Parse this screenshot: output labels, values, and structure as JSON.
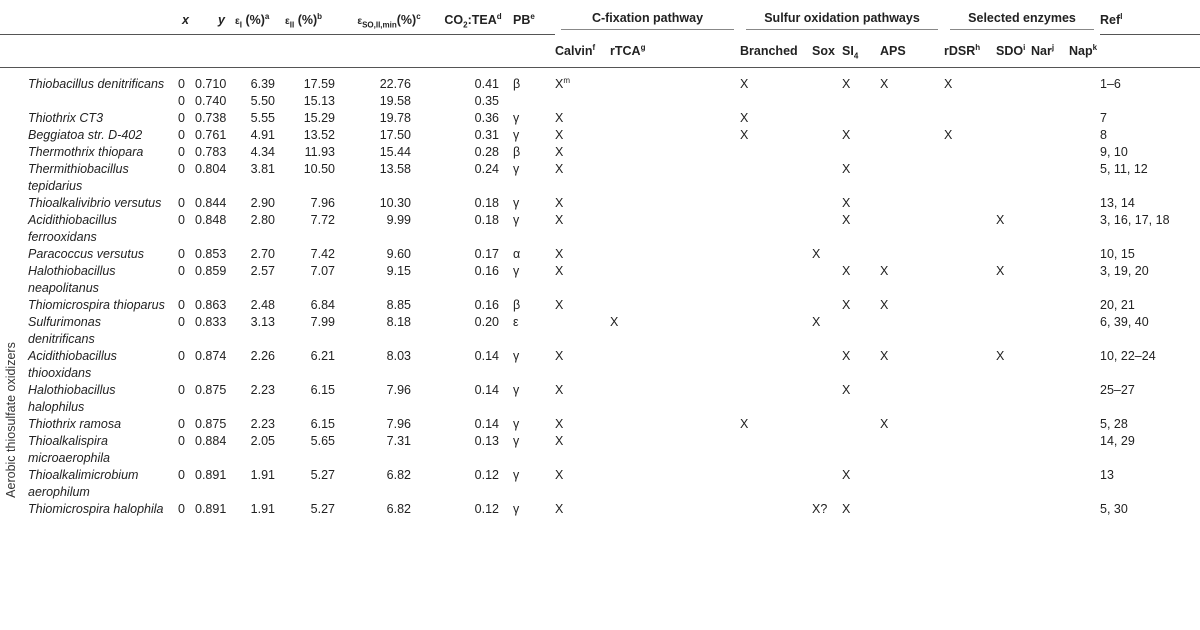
{
  "side_label": "Aerobic thiosulfate oxidizers",
  "headers": {
    "x": "x",
    "y": "y",
    "eps1": "ε",
    "eps1_sub": "I",
    "eps1_unit": "(%)",
    "eps1_sup": "a",
    "eps2": "ε",
    "eps2_sub": "II",
    "eps2_unit": "(%)",
    "eps2_sup": "b",
    "eps3": "ε",
    "eps3_sub": "SO,II,min",
    "eps3_unit": "(%)",
    "eps3_sup": "c",
    "co2": "CO",
    "co2_sub": "2",
    "co2_rest": ":TEA",
    "co2_sup": "d",
    "pb": "PB",
    "pb_sup": "e",
    "group_cfix": "C-fixation pathway",
    "group_sulfur": "Sulfur oxidation pathways",
    "group_enzymes": "Selected enzymes",
    "ref": "Ref",
    "ref_sup": "l",
    "calvin": "Calvin",
    "calvin_sup": "f",
    "rtca": "rTCA",
    "rtca_sup": "g",
    "branched": "Branched",
    "sox": "Sox",
    "si4": "SI",
    "si4_sub": "4",
    "aps": "APS",
    "rdsr": "rDSR",
    "rdsr_sup": "h",
    "sdo": "SDO",
    "sdo_sup": "i",
    "nar": "Nar",
    "nar_sup": "j",
    "nap": "Nap",
    "nap_sup": "k"
  },
  "rows": [
    {
      "org": "Thiobacillus denitrificans",
      "x": "0",
      "y": "0.710",
      "e1": "6.39",
      "e2": "17.59",
      "e3": "22.76",
      "co2": "0.41",
      "pb": "β",
      "calvin": "X",
      "calvin_sup": "m",
      "rtca": "",
      "branched": "X",
      "sox": "",
      "si4": "X",
      "aps": "X",
      "rdsr": "X",
      "sdo": "",
      "nar": "",
      "nap": "",
      "ref": "1–6"
    },
    {
      "org": "",
      "x": "0",
      "y": "0.740",
      "e1": "5.50",
      "e2": "15.13",
      "e3": "19.58",
      "co2": "0.35",
      "pb": "",
      "calvin": "",
      "calvin_sup": "",
      "rtca": "",
      "branched": "",
      "sox": "",
      "si4": "",
      "aps": "",
      "rdsr": "",
      "sdo": "",
      "nar": "",
      "nap": "",
      "ref": ""
    },
    {
      "org": "Thiothrix CT3",
      "x": "0",
      "y": "0.738",
      "e1": "5.55",
      "e2": "15.29",
      "e3": "19.78",
      "co2": "0.36",
      "pb": "γ",
      "calvin": "X",
      "calvin_sup": "",
      "rtca": "",
      "branched": "X",
      "sox": "",
      "si4": "",
      "aps": "",
      "rdsr": "",
      "sdo": "",
      "nar": "",
      "nap": "",
      "ref": "7"
    },
    {
      "org": "Beggiatoa str. D-402",
      "x": "0",
      "y": "0.761",
      "e1": "4.91",
      "e2": "13.52",
      "e3": "17.50",
      "co2": "0.31",
      "pb": "γ",
      "calvin": "X",
      "calvin_sup": "",
      "rtca": "",
      "branched": "X",
      "sox": "",
      "si4": "X",
      "aps": "",
      "rdsr": "X",
      "sdo": "",
      "nar": "",
      "nap": "",
      "ref": "8"
    },
    {
      "org": "Thermothrix thiopara",
      "x": "0",
      "y": "0.783",
      "e1": "4.34",
      "e2": "11.93",
      "e3": "15.44",
      "co2": "0.28",
      "pb": "β",
      "calvin": "X",
      "calvin_sup": "",
      "rtca": "",
      "branched": "",
      "sox": "",
      "si4": "",
      "aps": "",
      "rdsr": "",
      "sdo": "",
      "nar": "",
      "nap": "",
      "ref": "9, 10"
    },
    {
      "org": "Thermithiobacillus tepidarius",
      "x": "0",
      "y": "0.804",
      "e1": "3.81",
      "e2": "10.50",
      "e3": "13.58",
      "co2": "0.24",
      "pb": "γ",
      "calvin": "X",
      "calvin_sup": "",
      "rtca": "",
      "branched": "",
      "sox": "",
      "si4": "X",
      "aps": "",
      "rdsr": "",
      "sdo": "",
      "nar": "",
      "nap": "",
      "ref": "5, 11, 12"
    },
    {
      "org": "Thioalkalivibrio versutus",
      "x": "0",
      "y": "0.844",
      "e1": "2.90",
      "e2": "7.96",
      "e3": "10.30",
      "co2": "0.18",
      "pb": "γ",
      "calvin": "X",
      "calvin_sup": "",
      "rtca": "",
      "branched": "",
      "sox": "",
      "si4": "X",
      "aps": "",
      "rdsr": "",
      "sdo": "",
      "nar": "",
      "nap": "",
      "ref": "13, 14"
    },
    {
      "org": "Acidithiobacillus ferrooxidans",
      "x": "0",
      "y": "0.848",
      "e1": "2.80",
      "e2": "7.72",
      "e3": "9.99",
      "co2": "0.18",
      "pb": "γ",
      "calvin": "X",
      "calvin_sup": "",
      "rtca": "",
      "branched": "",
      "sox": "",
      "si4": "X",
      "aps": "",
      "rdsr": "",
      "sdo": "X",
      "nar": "",
      "nap": "",
      "ref": "3, 16, 17, 18"
    },
    {
      "org": "Paracoccus versutus",
      "x": "0",
      "y": "0.853",
      "e1": "2.70",
      "e2": "7.42",
      "e3": "9.60",
      "co2": "0.17",
      "pb": "α",
      "calvin": "X",
      "calvin_sup": "",
      "rtca": "",
      "branched": "",
      "sox": "X",
      "si4": "",
      "aps": "",
      "rdsr": "",
      "sdo": "",
      "nar": "",
      "nap": "",
      "ref": "10, 15"
    },
    {
      "org": "Halothiobacillus neapolitanus",
      "x": "0",
      "y": "0.859",
      "e1": "2.57",
      "e2": "7.07",
      "e3": "9.15",
      "co2": "0.16",
      "pb": "γ",
      "calvin": "X",
      "calvin_sup": "",
      "rtca": "",
      "branched": "",
      "sox": "",
      "si4": "X",
      "aps": "X",
      "rdsr": "",
      "sdo": "X",
      "nar": "",
      "nap": "",
      "ref": "3, 19, 20"
    },
    {
      "org": "Thiomicrospira thioparus",
      "x": "0",
      "y": "0.863",
      "e1": "2.48",
      "e2": "6.84",
      "e3": "8.85",
      "co2": "0.16",
      "pb": "β",
      "calvin": "X",
      "calvin_sup": "",
      "rtca": "",
      "branched": "",
      "sox": "",
      "si4": "X",
      "aps": "X",
      "rdsr": "",
      "sdo": "",
      "nar": "",
      "nap": "",
      "ref": "20, 21"
    },
    {
      "org": "Sulfurimonas denitrificans",
      "x": "0",
      "y": "0.833",
      "e1": "3.13",
      "e2": "7.99",
      "e3": "8.18",
      "co2": "0.20",
      "pb": "ε",
      "calvin": "",
      "calvin_sup": "",
      "rtca": "X",
      "branched": "",
      "sox": "X",
      "si4": "",
      "aps": "",
      "rdsr": "",
      "sdo": "",
      "nar": "",
      "nap": "",
      "ref": "6, 39, 40"
    },
    {
      "org": "Acidithiobacillus thiooxidans",
      "x": "0",
      "y": "0.874",
      "e1": "2.26",
      "e2": "6.21",
      "e3": "8.03",
      "co2": "0.14",
      "pb": "γ",
      "calvin": "X",
      "calvin_sup": "",
      "rtca": "",
      "branched": "",
      "sox": "",
      "si4": "X",
      "aps": "X",
      "rdsr": "",
      "sdo": "X",
      "nar": "",
      "nap": "",
      "ref": "10, 22–24"
    },
    {
      "org": "Halothiobacillus halophilus",
      "x": "0",
      "y": "0.875",
      "e1": "2.23",
      "e2": "6.15",
      "e3": "7.96",
      "co2": "0.14",
      "pb": "γ",
      "calvin": "X",
      "calvin_sup": "",
      "rtca": "",
      "branched": "",
      "sox": "",
      "si4": "X",
      "aps": "",
      "rdsr": "",
      "sdo": "",
      "nar": "",
      "nap": "",
      "ref": "25–27"
    },
    {
      "org": "Thiothrix ramosa",
      "x": "0",
      "y": "0.875",
      "e1": "2.23",
      "e2": "6.15",
      "e3": "7.96",
      "co2": "0.14",
      "pb": "γ",
      "calvin": "X",
      "calvin_sup": "",
      "rtca": "",
      "branched": "X",
      "sox": "",
      "si4": "",
      "aps": "X",
      "rdsr": "",
      "sdo": "",
      "nar": "",
      "nap": "",
      "ref": "5, 28"
    },
    {
      "org": "Thioalkalispira microaerophila",
      "x": "0",
      "y": "0.884",
      "e1": "2.05",
      "e2": "5.65",
      "e3": "7.31",
      "co2": "0.13",
      "pb": "γ",
      "calvin": "X",
      "calvin_sup": "",
      "rtca": "",
      "branched": "",
      "sox": "",
      "si4": "",
      "aps": "",
      "rdsr": "",
      "sdo": "",
      "nar": "",
      "nap": "",
      "ref": "14, 29"
    },
    {
      "org": "Thioalkalimicrobium aerophilum",
      "x": "0",
      "y": "0.891",
      "e1": "1.91",
      "e2": "5.27",
      "e3": "6.82",
      "co2": "0.12",
      "pb": "γ",
      "calvin": "X",
      "calvin_sup": "",
      "rtca": "",
      "branched": "",
      "sox": "",
      "si4": "X",
      "aps": "",
      "rdsr": "",
      "sdo": "",
      "nar": "",
      "nap": "",
      "ref": "13"
    },
    {
      "org": "Thiomicrospira halophila",
      "x": "0",
      "y": "0.891",
      "e1": "1.91",
      "e2": "5.27",
      "e3": "6.82",
      "co2": "0.12",
      "pb": "γ",
      "calvin": "X",
      "calvin_sup": "",
      "rtca": "",
      "branched": "",
      "sox": "X?",
      "si4": "X",
      "aps": "",
      "rdsr": "",
      "sdo": "",
      "nar": "",
      "nap": "",
      "ref": "5, 30"
    }
  ]
}
